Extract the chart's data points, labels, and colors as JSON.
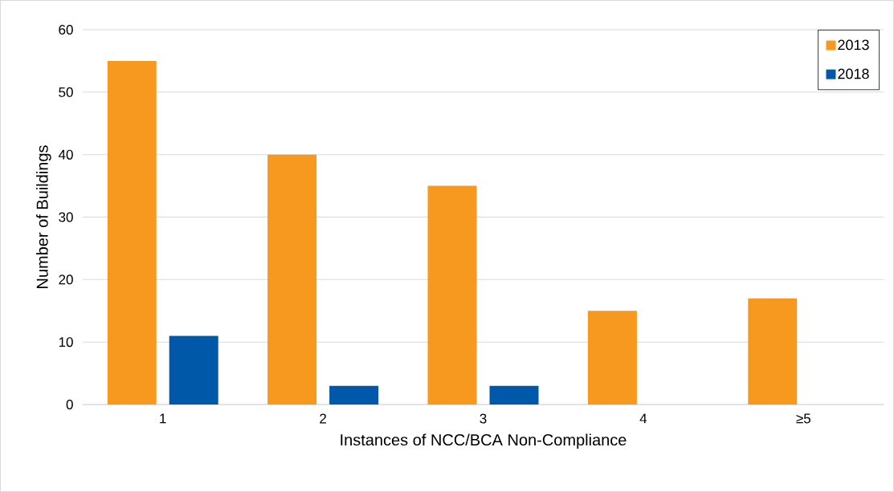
{
  "chart_data": {
    "type": "bar",
    "xlabel": "Instances of NCC/BCA Non-Compliance",
    "ylabel": "Number of Buildings",
    "categories": [
      "1",
      "2",
      "3",
      "4",
      "≥5"
    ],
    "series": [
      {
        "name": "2013",
        "color": "#f7981f",
        "values": [
          55,
          40,
          35,
          15,
          17
        ]
      },
      {
        "name": "2018",
        "color": "#0058a8",
        "values": [
          11,
          3,
          3,
          0,
          0
        ]
      }
    ],
    "ylim": [
      0,
      60
    ],
    "yticks": [
      0,
      10,
      20,
      30,
      40,
      50,
      60
    ],
    "grid": "y",
    "legend": "top right"
  }
}
